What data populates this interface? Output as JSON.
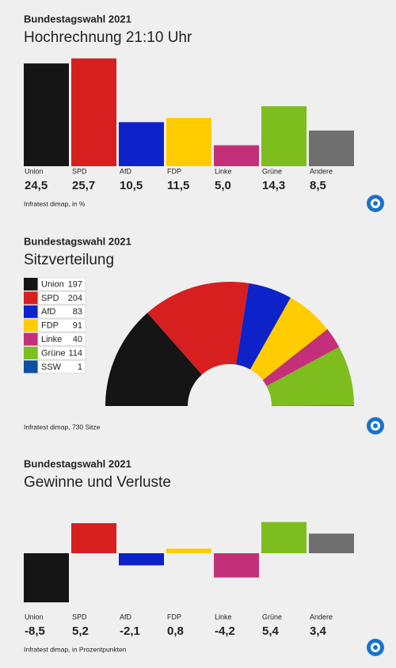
{
  "chart_data": [
    {
      "type": "bar",
      "overline": "Bundestagswahl 2021",
      "title": "Hochrechnung 21:10 Uhr",
      "categories": [
        "Union",
        "SPD",
        "AfD",
        "FDP",
        "Linke",
        "Grüne",
        "Andere"
      ],
      "values": [
        24.5,
        25.7,
        10.5,
        11.5,
        5.0,
        14.3,
        8.5
      ],
      "value_labels": [
        "24,5",
        "25,7",
        "10,5",
        "11,5",
        "5,0",
        "14,3",
        "8,5"
      ],
      "colors": [
        "#151515",
        "#d71f1f",
        "#0d22c9",
        "#ffcc00",
        "#c33079",
        "#7dbd1d",
        "#6f6f6f"
      ],
      "source": "Infratest dimap, in %"
    },
    {
      "type": "parliament",
      "overline": "Bundestagswahl 2021",
      "title": "Sitzverteilung",
      "categories": [
        "Union",
        "SPD",
        "AfD",
        "FDP",
        "Linke",
        "Grüne",
        "SSW"
      ],
      "values": [
        197,
        204,
        83,
        91,
        40,
        114,
        1
      ],
      "colors": [
        "#151515",
        "#d71f1f",
        "#0d22c9",
        "#ffcc00",
        "#c33079",
        "#7dbd1d",
        "#0d4fa3"
      ],
      "source": "Infratest dimap, 730 Sitze"
    },
    {
      "type": "bar",
      "overline": "Bundestagswahl 2021",
      "title": "Gewinne und Verluste",
      "categories": [
        "Union",
        "SPD",
        "AfD",
        "FDP",
        "Linke",
        "Grüne",
        "Andere"
      ],
      "values": [
        -8.5,
        5.2,
        -2.1,
        0.8,
        -4.2,
        5.4,
        3.4
      ],
      "value_labels": [
        "-8,5",
        "5,2",
        "-2,1",
        "0,8",
        "-4,2",
        "5,4",
        "3,4"
      ],
      "colors": [
        "#151515",
        "#d71f1f",
        "#0d22c9",
        "#ffcc00",
        "#c33079",
        "#7dbd1d",
        "#6f6f6f"
      ],
      "source": "Infratest dimap, in Prozentpunkten"
    }
  ]
}
